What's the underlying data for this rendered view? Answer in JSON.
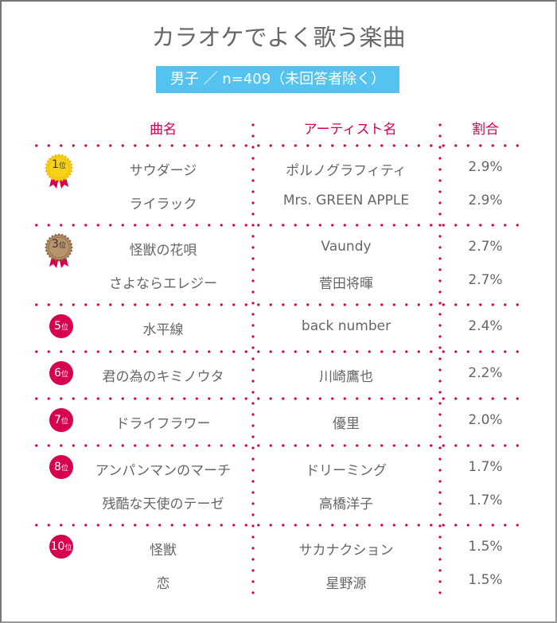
{
  "title": "カラオケでよく歌う楽曲",
  "subtitle": "男子 ／ n=409（未回答者除く）",
  "colors": {
    "accent": "#d6004c",
    "badge": "#55c3f0",
    "gold": "#f7d21a",
    "bronze": "#b8946c"
  },
  "chart_data": {
    "type": "table",
    "title": "カラオケでよく歌う楽曲",
    "columns": [
      "曲名",
      "アーティスト名",
      "割合"
    ],
    "rank_suffix": "位",
    "groups": [
      {
        "rank": "1",
        "medal": "gold",
        "rows": [
          {
            "song": "サウダージ",
            "artist": "ポルノグラフィティ",
            "pct": "2.9%"
          },
          {
            "song": "ライラック",
            "artist": "Mrs. GREEN APPLE",
            "pct": "2.9%"
          }
        ]
      },
      {
        "rank": "3",
        "medal": "bronze",
        "rows": [
          {
            "song": "怪獣の花唄",
            "artist": "Vaundy",
            "pct": "2.7%"
          },
          {
            "song": "さよならエレジー",
            "artist": "菅田将暉",
            "pct": "2.7%"
          }
        ]
      },
      {
        "rank": "5",
        "rows": [
          {
            "song": "水平線",
            "artist": "back number",
            "pct": "2.4%"
          }
        ]
      },
      {
        "rank": "6",
        "rows": [
          {
            "song": "君の為のキミノウタ",
            "artist": "川崎鷹也",
            "pct": "2.2%"
          }
        ]
      },
      {
        "rank": "7",
        "rows": [
          {
            "song": "ドライフラワー",
            "artist": "優里",
            "pct": "2.0%"
          }
        ]
      },
      {
        "rank": "8",
        "rows": [
          {
            "song": "アンパンマンのマーチ",
            "artist": "ドリーミング",
            "pct": "1.7%"
          },
          {
            "song": "残酷な天使のテーゼ",
            "artist": "高橋洋子",
            "pct": "1.7%"
          }
        ]
      },
      {
        "rank": "10",
        "rows": [
          {
            "song": "怪獣",
            "artist": "サカナクション",
            "pct": "1.5%"
          },
          {
            "song": "恋",
            "artist": "星野源",
            "pct": "1.5%"
          }
        ]
      }
    ]
  }
}
